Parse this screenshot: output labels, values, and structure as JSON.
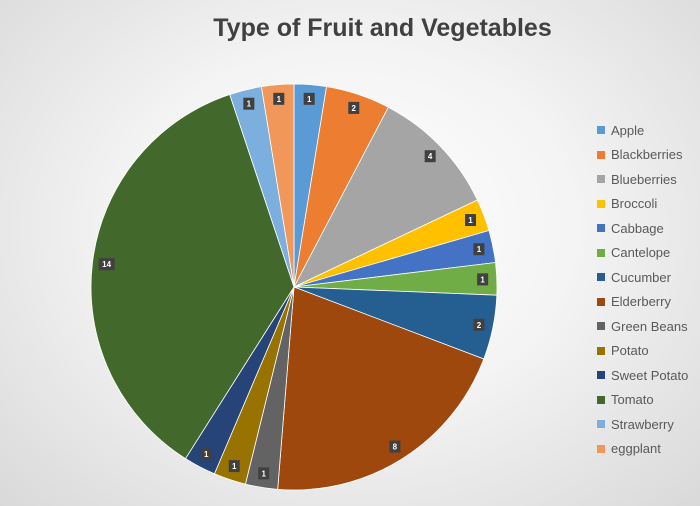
{
  "chart_data": {
    "type": "pie",
    "title": "Type of Fruit and Vegetables",
    "legend_position": "right",
    "start_angle_deg": 0,
    "categories": [
      "Apple",
      "Blackberries",
      "Blueberries",
      "Broccoli",
      "Cabbage",
      "Cantelope",
      "Cucumber",
      "Elderberry",
      "Green Beans",
      "Potato",
      "Sweet Potato",
      "Tomato",
      "Strawberry",
      "eggplant"
    ],
    "values": [
      1,
      2,
      4,
      1,
      1,
      1,
      2,
      8,
      1,
      1,
      1,
      14,
      1,
      1
    ],
    "colors": [
      "#5B9BD5",
      "#ED7D31",
      "#A5A5A5",
      "#FFC000",
      "#4472C4",
      "#70AD47",
      "#255E91",
      "#9E480E",
      "#636363",
      "#997300",
      "#264478",
      "#43682B",
      "#7CAFDD",
      "#F1975A"
    ]
  }
}
